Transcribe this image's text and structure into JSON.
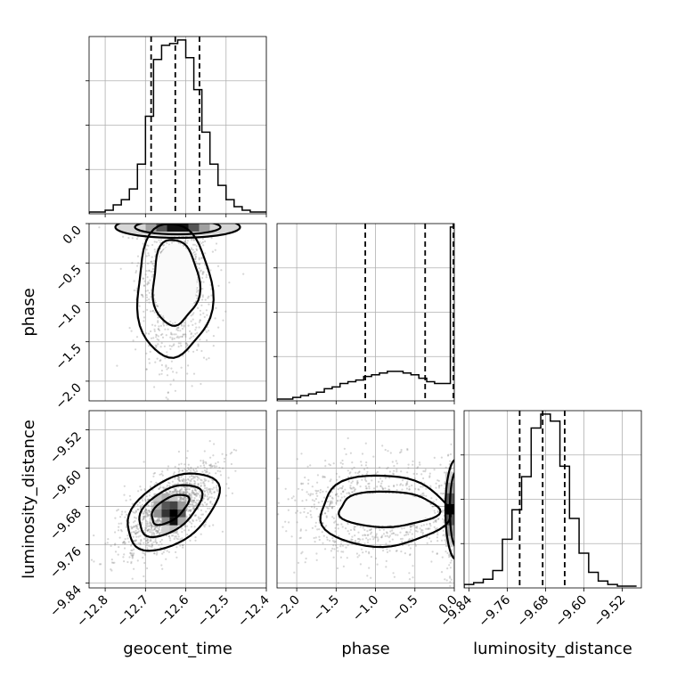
{
  "chart_data": {
    "type": "corner",
    "parameters": [
      "geocent_time",
      "phase",
      "luminosity_distance"
    ],
    "ranges": {
      "geocent_time": [
        -12.84,
        -12.4
      ],
      "phase": [
        -2.25,
        0.0
      ],
      "luminosity_distance": [
        -9.85,
        -9.48
      ]
    },
    "ticks": {
      "geocent_time": [
        -12.8,
        -12.7,
        -12.6,
        -12.5,
        -12.4
      ],
      "phase": [
        -2.0,
        -1.5,
        -1.0,
        -0.5,
        0.0
      ],
      "luminosity_distance": [
        -9.84,
        -9.76,
        -9.68,
        -9.6,
        -9.52
      ]
    },
    "tick_labels": {
      "geocent_time": [
        "−12.8",
        "−12.7",
        "−12.6",
        "−12.5",
        "−12.4"
      ],
      "phase": [
        "−2.0",
        "−1.5",
        "−1.0",
        "−0.5",
        "0.0"
      ],
      "luminosity_distance": [
        "−9.84",
        "−9.76",
        "−9.68",
        "−9.60",
        "−9.52"
      ]
    },
    "histograms": {
      "geocent_time": {
        "bin_edges": [
          -12.84,
          -12.82,
          -12.8,
          -12.78,
          -12.76,
          -12.74,
          -12.72,
          -12.7,
          -12.68,
          -12.66,
          -12.64,
          -12.62,
          -12.6,
          -12.58,
          -12.56,
          -12.54,
          -12.52,
          -12.5,
          -12.48,
          -12.46,
          -12.44,
          -12.42,
          -12.4
        ],
        "counts": [
          1,
          1,
          2,
          5,
          8,
          14,
          28,
          55,
          87,
          95,
          96,
          98,
          88,
          70,
          46,
          28,
          16,
          8,
          4,
          2,
          1,
          1
        ],
        "quantiles": [
          -12.686,
          -12.626,
          -12.566
        ]
      },
      "phase": {
        "bin_edges": [
          -2.25,
          -2.15,
          -2.05,
          -1.95,
          -1.85,
          -1.75,
          -1.65,
          -1.55,
          -1.45,
          -1.35,
          -1.25,
          -1.15,
          -1.05,
          -0.95,
          -0.85,
          -0.75,
          -0.65,
          -0.55,
          -0.45,
          -0.35,
          -0.25,
          -0.15,
          -0.05,
          0.0
        ],
        "counts": [
          1,
          1,
          2,
          3,
          4,
          5,
          7,
          8,
          10,
          11,
          12,
          14,
          15,
          16,
          17,
          17,
          16,
          15,
          13,
          11,
          10,
          10,
          100
        ],
        "quantiles": [
          -1.13,
          -0.37,
          0.0
        ]
      },
      "luminosity_distance": {
        "bin_edges": [
          -9.85,
          -9.83,
          -9.81,
          -9.79,
          -9.77,
          -9.75,
          -9.73,
          -9.71,
          -9.69,
          -9.67,
          -9.65,
          -9.63,
          -9.61,
          -9.59,
          -9.57,
          -9.55,
          -9.53,
          -9.51,
          -9.49
        ],
        "counts": [
          2,
          3,
          5,
          10,
          28,
          45,
          64,
          92,
          100,
          96,
          70,
          40,
          20,
          9,
          4,
          2,
          1,
          1
        ],
        "quantiles": [
          -9.734,
          -9.686,
          -9.64
        ]
      }
    },
    "pairs": [
      {
        "x": "geocent_time",
        "y": "phase",
        "peak": [
          -12.626,
          -0.75
        ],
        "density_peak_at": [
          -12.62,
          -0.05
        ]
      },
      {
        "x": "geocent_time",
        "y": "luminosity_distance",
        "peak": [
          -12.64,
          -9.686
        ]
      },
      {
        "x": "phase",
        "y": "luminosity_distance",
        "peak": [
          -0.9,
          -9.686
        ],
        "density_peak_at": [
          -0.02,
          -9.686
        ]
      }
    ],
    "grid": true
  }
}
